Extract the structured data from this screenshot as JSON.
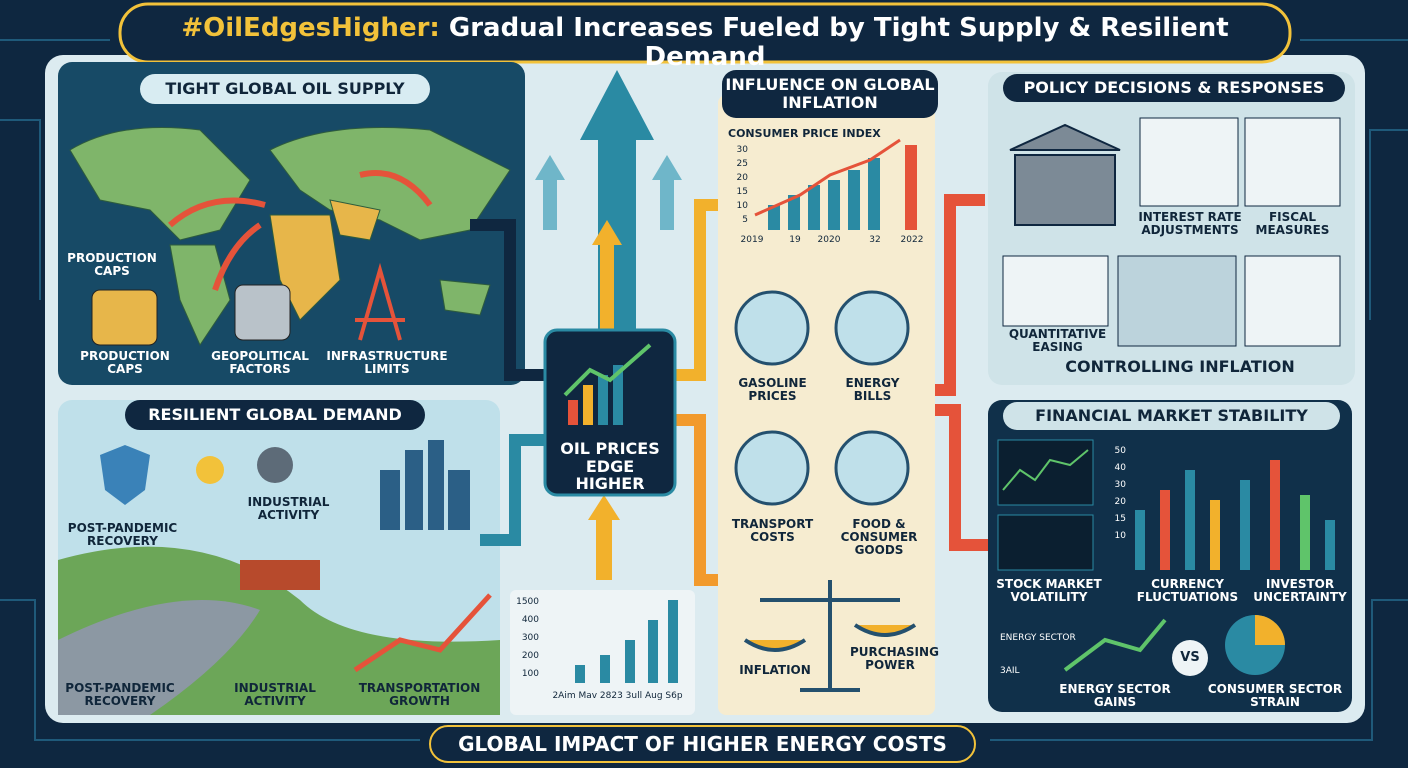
{
  "header": {
    "title_tag": "#OilEdgesHigher:",
    "title": "Gradual Increases Fueled by Tight Supply & Resilient Demand"
  },
  "supply": {
    "title": "TIGHT GLOBAL OIL SUPPLY",
    "labels": [
      "PRODUCTION CAPS",
      "PRODUCTION CAPS",
      "GEOPOLITICAL FACTORS",
      "INFRASTRUCTURE LIMITS"
    ]
  },
  "demand": {
    "title": "RESILIENT GLOBAL DEMAND",
    "labels": [
      "POST-PANDEMIC RECOVERY",
      "INDUSTRIAL ACTIVITY",
      "POST-PANDEMIC RECOVERY",
      "INDUSTRIAL ACTIVITY",
      "TRANSPORTATION GROWTH"
    ]
  },
  "center": {
    "label": "OIL PRICES EDGE HIGHER",
    "chart_y_labels": [
      1500,
      400,
      300,
      200,
      100
    ],
    "chart_x_labels": "2Aim Mav 2823 3ull Aug S6p"
  },
  "inflation": {
    "title": "INFLUENCE ON GLOBAL INFLATION",
    "chart_title": "CONSUMER PRICE INDEX",
    "y_labels": [
      30,
      25,
      20,
      15,
      10,
      5
    ],
    "x_labels": [
      "2019",
      "19",
      "2020",
      "32",
      "2022"
    ],
    "items": [
      "GASOLINE PRICES",
      "ENERGY BILLS",
      "TRANSPORT COSTS",
      "FOOD & CONSUMER GOODS"
    ],
    "scale": [
      "INFLATION",
      "PURCHASING POWER"
    ]
  },
  "policy": {
    "title": "POLICY DECISIONS & RESPONSES",
    "items": [
      "INTEREST RATE ADJUSTMENTS",
      "FISCAL MEASURES",
      "QUANTITATIVE EASING"
    ],
    "caption": "CONTROLLING INFLATION"
  },
  "market": {
    "title": "FINANCIAL MARKET STABILITY",
    "y_labels": [
      50,
      40,
      30,
      20,
      15,
      10
    ],
    "items": [
      "STOCK MARKET VOLATILITY",
      "CURRENCY FLUCTUATIONS",
      "INVESTOR UNCERTAINTY"
    ],
    "legend": [
      "ENERGY SECTOR",
      "3AIL"
    ],
    "vs": "VS",
    "compare": [
      "ENERGY SECTOR GAINS",
      "CONSUMER SECTOR STRAIN"
    ]
  },
  "footer": {
    "title": "GLOBAL IMPACT OF HIGHER ENERGY COSTS"
  }
}
